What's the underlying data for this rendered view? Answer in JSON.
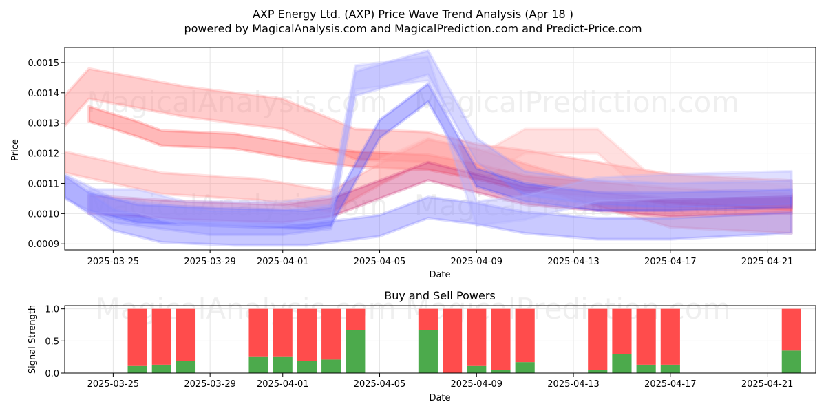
{
  "chart_data": [
    {
      "type": "area",
      "title": "AXP Energy Ltd. (AXP) Price Wave Trend Analysis (Apr 18 )",
      "subtitle": "powered by MagicalAnalysis.com and MagicalPrediction.com and Predict-Price.com",
      "xlabel": "Date",
      "ylabel": "Price",
      "xlim": [
        "2025-03-23",
        "2025-04-23"
      ],
      "ylim": [
        0.00088,
        0.00155
      ],
      "x_ticks": [
        "2025-03-25",
        "2025-03-29",
        "2025-04-01",
        "2025-04-05",
        "2025-04-09",
        "2025-04-13",
        "2025-04-17",
        "2025-04-21"
      ],
      "y_ticks": [
        "0.0009",
        "0.0010",
        "0.0011",
        "0.0012",
        "0.0013",
        "0.0014",
        "0.0015"
      ],
      "grid": true,
      "series": [
        {
          "name": "red-wave-upper",
          "color": "#ff8080",
          "width": 0.0001,
          "x": [
            "2025-03-23",
            "2025-03-24",
            "2025-03-28",
            "2025-04-01",
            "2025-04-04",
            "2025-04-07",
            "2025-04-09",
            "2025-04-11",
            "2025-04-14",
            "2025-04-17",
            "2025-04-22"
          ],
          "y": [
            0.00134,
            0.00143,
            0.00137,
            0.00133,
            0.00123,
            0.00122,
            0.00118,
            0.00116,
            0.00112,
            0.00108,
            0.00106
          ]
        },
        {
          "name": "red-wave-main",
          "color": "#ff5050",
          "width": 5e-05,
          "x": [
            "2025-03-24",
            "2025-03-26",
            "2025-03-27",
            "2025-03-30",
            "2025-04-02",
            "2025-04-04",
            "2025-04-07",
            "2025-04-09",
            "2025-04-11",
            "2025-04-14",
            "2025-04-17",
            "2025-04-22"
          ],
          "y": [
            0.00133,
            0.00128,
            0.00125,
            0.00124,
            0.0012,
            0.00118,
            0.00117,
            0.00114,
            0.0011,
            0.00108,
            0.00106,
            0.00104
          ]
        },
        {
          "name": "red-wave-lower",
          "color": "#ff9090",
          "width": 7e-05,
          "x": [
            "2025-03-23",
            "2025-03-27",
            "2025-03-31",
            "2025-04-03",
            "2025-04-05",
            "2025-04-07",
            "2025-04-09",
            "2025-04-11",
            "2025-04-14",
            "2025-04-17",
            "2025-04-22"
          ],
          "y": [
            0.00117,
            0.0011,
            0.00108,
            0.00104,
            0.00113,
            0.00121,
            0.00118,
            0.00113,
            0.00106,
            0.00099,
            0.00097
          ]
        },
        {
          "name": "pink-wave-bump",
          "color": "#ffb0b0",
          "width": 8e-05,
          "x": [
            "2025-04-05",
            "2025-04-07",
            "2025-04-09",
            "2025-04-11",
            "2025-04-14",
            "2025-04-16",
            "2025-04-22"
          ],
          "y": [
            0.00114,
            0.00121,
            0.00115,
            0.00124,
            0.00124,
            0.0011,
            0.00105
          ]
        },
        {
          "name": "magenta-wave",
          "color": "#cc3377",
          "width": 6e-05,
          "x": [
            "2025-03-24",
            "2025-03-28",
            "2025-04-01",
            "2025-04-03",
            "2025-04-05",
            "2025-04-07",
            "2025-04-09",
            "2025-04-11",
            "2025-04-14",
            "2025-04-17",
            "2025-04-22"
          ],
          "y": [
            0.00103,
            0.00101,
            0.001,
            0.00102,
            0.00108,
            0.00114,
            0.0011,
            0.00106,
            0.00104,
            0.00102,
            0.00103
          ]
        },
        {
          "name": "blue-wave-upper",
          "color": "#9999ff",
          "width": 8e-05,
          "x": [
            "2025-03-23",
            "2025-03-25",
            "2025-03-29",
            "2025-04-01",
            "2025-04-03",
            "2025-04-04",
            "2025-04-07",
            "2025-04-09",
            "2025-04-11",
            "2025-04-14",
            "2025-04-17",
            "2025-04-22"
          ],
          "y": [
            0.00109,
            0.00101,
            0.00097,
            0.00097,
            0.00099,
            0.00143,
            0.0015,
            0.00121,
            0.0011,
            0.00107,
            0.00106,
            0.00107
          ]
        },
        {
          "name": "blue-wave-main",
          "color": "#5050ff",
          "width": 6e-05,
          "x": [
            "2025-03-24",
            "2025-03-26",
            "2025-03-29",
            "2025-04-02",
            "2025-04-03",
            "2025-04-05",
            "2025-04-07",
            "2025-04-09",
            "2025-04-11",
            "2025-04-14",
            "2025-04-17",
            "2025-04-22"
          ],
          "y": [
            0.00104,
            0.001,
            0.00099,
            0.00098,
            0.00099,
            0.00128,
            0.0014,
            0.00112,
            0.00107,
            0.00104,
            0.00104,
            0.00105
          ]
        },
        {
          "name": "blue-wave-lower",
          "color": "#7777ff",
          "width": 7e-05,
          "x": [
            "2025-03-23",
            "2025-03-25",
            "2025-03-27",
            "2025-03-30",
            "2025-04-02",
            "2025-04-05",
            "2025-04-07",
            "2025-04-09",
            "2025-04-11",
            "2025-04-14",
            "2025-04-17",
            "2025-04-22"
          ],
          "y": [
            0.00109,
            0.00098,
            0.00094,
            0.00093,
            0.00093,
            0.00096,
            0.00102,
            0.001,
            0.00097,
            0.00095,
            0.00095,
            0.00097
          ]
        },
        {
          "name": "blue-wave-spike",
          "color": "#b0b0ff",
          "width": 8e-05,
          "x": [
            "2025-03-24",
            "2025-03-26",
            "2025-03-28",
            "2025-04-01",
            "2025-04-03",
            "2025-04-04",
            "2025-04-07",
            "2025-04-09",
            "2025-04-11",
            "2025-04-14",
            "2025-04-17",
            "2025-04-22"
          ],
          "y": [
            0.00104,
            0.00104,
            0.001,
            0.001,
            0.00102,
            0.00145,
            0.00148,
            0.001,
            0.00102,
            0.00108,
            0.00109,
            0.0011
          ]
        }
      ]
    },
    {
      "type": "bar",
      "title": "Buy and Sell Powers",
      "xlabel": "Date",
      "ylabel": "Signal Strength",
      "xlim": [
        "2025-03-23",
        "2025-04-23"
      ],
      "ylim": [
        0,
        1.05
      ],
      "x_ticks": [
        "2025-03-25",
        "2025-03-29",
        "2025-04-01",
        "2025-04-05",
        "2025-04-09",
        "2025-04-13",
        "2025-04-17",
        "2025-04-21"
      ],
      "y_ticks": [
        "0.0",
        "0.5",
        "1.0"
      ],
      "grid": true,
      "buy_color": "#4caa4c",
      "sell_color": "#ff4c4c",
      "dates": [
        "2025-03-26",
        "2025-03-27",
        "2025-03-28",
        "2025-03-31",
        "2025-04-01",
        "2025-04-02",
        "2025-04-03",
        "2025-04-04",
        "2025-04-07",
        "2025-04-08",
        "2025-04-09",
        "2025-04-10",
        "2025-04-11",
        "2025-04-14",
        "2025-04-15",
        "2025-04-16",
        "2025-04-17",
        "2025-04-22"
      ],
      "buy": [
        0.12,
        0.13,
        0.19,
        0.26,
        0.26,
        0.19,
        0.21,
        0.67,
        0.67,
        0.0,
        0.12,
        0.05,
        0.17,
        0.05,
        0.3,
        0.13,
        0.13,
        0.35
      ],
      "sell": [
        0.88,
        0.87,
        0.81,
        0.74,
        0.74,
        0.81,
        0.79,
        0.33,
        0.33,
        1.0,
        0.88,
        0.95,
        0.83,
        0.95,
        0.7,
        0.87,
        0.87,
        0.65
      ]
    }
  ],
  "watermarks": {
    "top": "MagicalAnalysis.com",
    "top_right": "MagicalPrediction.com",
    "mid": "MagicalAnalysis.com",
    "mid_right": "MagicalPrediction.com",
    "bottom": "MagicalAnalysis.com     MagicalPrediction.com"
  }
}
